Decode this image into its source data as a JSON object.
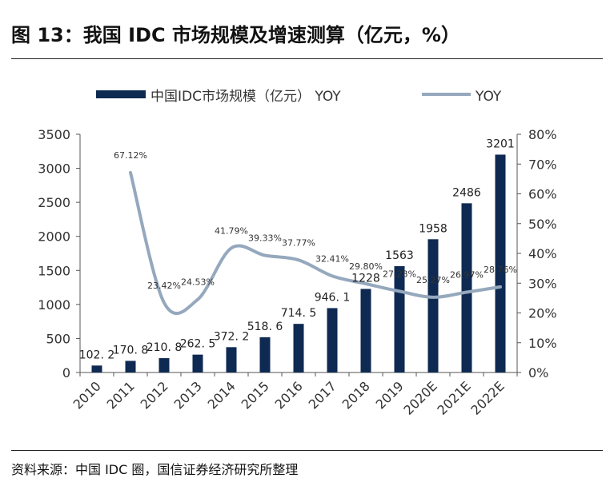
{
  "header": {
    "title": "图 13：我国 IDC 市场规模及增速测算（亿元，%）"
  },
  "footer": {
    "source": "资料来源：中国 IDC 圈，国信证券经济研究所整理"
  },
  "colors": {
    "bar": "#0e2a52",
    "line": "#95a8bd",
    "axis_text": "#333333"
  },
  "chart_data": {
    "type": "bar",
    "categories": [
      "2010",
      "2011",
      "2012",
      "2013",
      "2014",
      "2015",
      "2016",
      "2017",
      "2018",
      "2019",
      "2020E",
      "2021E",
      "2022E"
    ],
    "series": [
      {
        "name": "中国IDC市场规模（亿元）",
        "type": "bar",
        "axis": "left",
        "values": [
          102.2,
          170.8,
          210.8,
          262.5,
          372.2,
          518.6,
          714.5,
          946.1,
          1228,
          1563,
          1958,
          2486,
          3201
        ],
        "labels": [
          "102. 2",
          "170. 8",
          "210. 8",
          "262. 5",
          "372. 2",
          "518. 6",
          "714. 5",
          "946. 1",
          "1228",
          "1563",
          "1958",
          "2486",
          "3201"
        ]
      },
      {
        "name": "YOY",
        "type": "line",
        "axis": "right",
        "values": [
          null,
          67.12,
          23.42,
          24.53,
          41.79,
          39.33,
          37.77,
          32.41,
          29.8,
          27.28,
          25.27,
          26.97,
          28.76
        ],
        "labels": [
          "",
          "67.12%",
          "23.42%",
          "24.53%",
          "41.79%",
          "39.33%",
          "37.77%",
          "32.41%",
          "29.80%",
          "27.28%",
          "25.27%",
          "26.97%",
          "28.76%"
        ]
      }
    ],
    "legend": {
      "position": "top",
      "entries": [
        "中国IDC市场规模（亿元） YOY",
        "YOY"
      ]
    },
    "y_left": {
      "min": 0,
      "max": 3500,
      "ticks": [
        "0",
        "500",
        "1000",
        "1500",
        "2000",
        "2500",
        "3000",
        "3500"
      ]
    },
    "y_right": {
      "min": 0,
      "max": 80,
      "ticks": [
        "0%",
        "10%",
        "20%",
        "30%",
        "40%",
        "50%",
        "60%",
        "70%",
        "80%"
      ]
    },
    "grid": false
  }
}
